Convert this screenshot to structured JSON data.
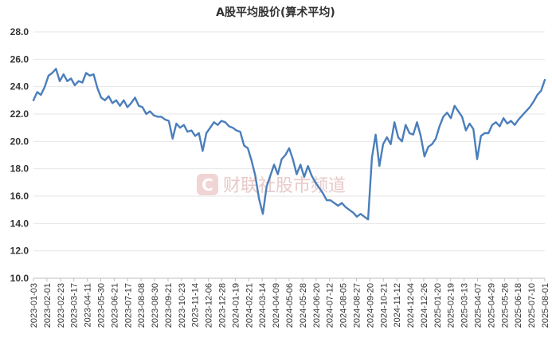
{
  "chart_data": {
    "type": "line",
    "title": "A股平均股价(算术平均)",
    "xlabel": "",
    "ylabel": "",
    "ylim": [
      10.0,
      28.0
    ],
    "yticks": [
      "28.0",
      "26.0",
      "24.0",
      "22.0",
      "20.0",
      "18.0",
      "16.0",
      "14.0",
      "12.0",
      "10.0"
    ],
    "x_tick_labels": [
      "2023-01-03",
      "2023-02-01",
      "2023-02-23",
      "2023-03-17",
      "2023-04-11",
      "2023-05-30",
      "2023-06-21",
      "2023-07-17",
      "2023-08-08",
      "2023-08-30",
      "2023-09-21",
      "2023-10-23",
      "2023-11-14",
      "2023-12-06",
      "2023-12-28",
      "2024-01-19",
      "2024-02-21",
      "2024-03-14",
      "2024-04-09",
      "2024-05-06",
      "2024-05-28",
      "2024-06-20",
      "2024-07-12",
      "2024-08-05",
      "2024-08-27",
      "2024-09-20",
      "2024-10-21",
      "2024-11-12",
      "2024-12-04",
      "2024-12-26",
      "2025-01-20",
      "2025-02-19",
      "2025-03-13",
      "2025-04-07",
      "2025-04-29",
      "2025-05-26",
      "2025-06-18",
      "2025-07-10",
      "2025-08-01"
    ],
    "line_color": "#4a7ebb",
    "grid": "horizontal",
    "legend": "none",
    "series": [
      {
        "values": [
          [
            0,
            23.0
          ],
          [
            2,
            23.6
          ],
          [
            4,
            23.4
          ],
          [
            6,
            24.0
          ],
          [
            8,
            24.8
          ],
          [
            10,
            25.0
          ],
          [
            12,
            25.3
          ],
          [
            14,
            24.4
          ],
          [
            16,
            24.9
          ],
          [
            18,
            24.4
          ],
          [
            20,
            24.6
          ],
          [
            22,
            24.1
          ],
          [
            24,
            24.4
          ],
          [
            26,
            24.3
          ],
          [
            28,
            25.0
          ],
          [
            30,
            24.8
          ],
          [
            32,
            24.9
          ],
          [
            34,
            23.9
          ],
          [
            36,
            23.2
          ],
          [
            38,
            23.0
          ],
          [
            40,
            23.3
          ],
          [
            42,
            22.8
          ],
          [
            44,
            23.0
          ],
          [
            46,
            22.6
          ],
          [
            48,
            23.0
          ],
          [
            50,
            22.5
          ],
          [
            52,
            22.8
          ],
          [
            54,
            23.2
          ],
          [
            56,
            22.6
          ],
          [
            58,
            22.5
          ],
          [
            60,
            22.0
          ],
          [
            62,
            22.2
          ],
          [
            64,
            21.9
          ],
          [
            66,
            21.8
          ],
          [
            68,
            21.8
          ],
          [
            70,
            21.6
          ],
          [
            72,
            21.5
          ],
          [
            74,
            20.2
          ],
          [
            76,
            21.3
          ],
          [
            78,
            21.0
          ],
          [
            80,
            21.2
          ],
          [
            82,
            20.7
          ],
          [
            84,
            20.8
          ],
          [
            86,
            20.4
          ],
          [
            88,
            20.6
          ],
          [
            90,
            19.3
          ],
          [
            92,
            20.6
          ],
          [
            94,
            21.0
          ],
          [
            96,
            21.4
          ],
          [
            98,
            21.2
          ],
          [
            100,
            21.5
          ],
          [
            102,
            21.4
          ],
          [
            104,
            21.1
          ],
          [
            106,
            21.0
          ],
          [
            108,
            20.8
          ],
          [
            110,
            20.7
          ],
          [
            112,
            19.7
          ],
          [
            114,
            19.5
          ],
          [
            116,
            18.6
          ],
          [
            118,
            17.5
          ],
          [
            120,
            15.8
          ],
          [
            122,
            14.7
          ],
          [
            124,
            16.7
          ],
          [
            126,
            17.5
          ],
          [
            128,
            18.3
          ],
          [
            130,
            17.6
          ],
          [
            132,
            18.7
          ],
          [
            134,
            19.0
          ],
          [
            136,
            19.5
          ],
          [
            138,
            18.7
          ],
          [
            140,
            17.6
          ],
          [
            142,
            18.3
          ],
          [
            144,
            17.4
          ],
          [
            146,
            18.2
          ],
          [
            148,
            17.5
          ],
          [
            150,
            17.0
          ],
          [
            152,
            16.6
          ],
          [
            154,
            16.2
          ],
          [
            156,
            15.7
          ],
          [
            158,
            15.7
          ],
          [
            160,
            15.5
          ],
          [
            162,
            15.3
          ],
          [
            164,
            15.5
          ],
          [
            166,
            15.2
          ],
          [
            168,
            15.0
          ],
          [
            170,
            14.8
          ],
          [
            172,
            14.5
          ],
          [
            174,
            14.7
          ],
          [
            176,
            14.5
          ],
          [
            178,
            14.3
          ],
          [
            180,
            18.8
          ],
          [
            182,
            20.5
          ],
          [
            184,
            18.2
          ],
          [
            186,
            19.8
          ],
          [
            188,
            20.3
          ],
          [
            190,
            19.8
          ],
          [
            192,
            21.4
          ],
          [
            194,
            20.3
          ],
          [
            196,
            20.0
          ],
          [
            198,
            21.2
          ],
          [
            200,
            20.6
          ],
          [
            202,
            20.5
          ],
          [
            204,
            21.4
          ],
          [
            206,
            20.4
          ],
          [
            208,
            18.9
          ],
          [
            210,
            19.6
          ],
          [
            212,
            19.8
          ],
          [
            214,
            20.2
          ],
          [
            216,
            21.1
          ],
          [
            218,
            21.8
          ],
          [
            220,
            22.1
          ],
          [
            222,
            21.7
          ],
          [
            224,
            22.6
          ],
          [
            226,
            22.2
          ],
          [
            228,
            21.8
          ],
          [
            230,
            20.8
          ],
          [
            232,
            21.3
          ],
          [
            234,
            20.9
          ],
          [
            236,
            18.7
          ],
          [
            238,
            20.4
          ],
          [
            240,
            20.6
          ],
          [
            242,
            20.6
          ],
          [
            244,
            21.2
          ],
          [
            246,
            21.4
          ],
          [
            248,
            21.1
          ],
          [
            250,
            21.7
          ],
          [
            252,
            21.3
          ],
          [
            254,
            21.5
          ],
          [
            256,
            21.2
          ],
          [
            258,
            21.6
          ],
          [
            260,
            21.9
          ],
          [
            262,
            22.2
          ],
          [
            264,
            22.5
          ],
          [
            266,
            22.9
          ],
          [
            268,
            23.4
          ],
          [
            270,
            23.7
          ],
          [
            272,
            24.5
          ]
        ]
      }
    ]
  },
  "watermark": {
    "icon": "c-logo-icon",
    "text": "财联社股市频道"
  }
}
